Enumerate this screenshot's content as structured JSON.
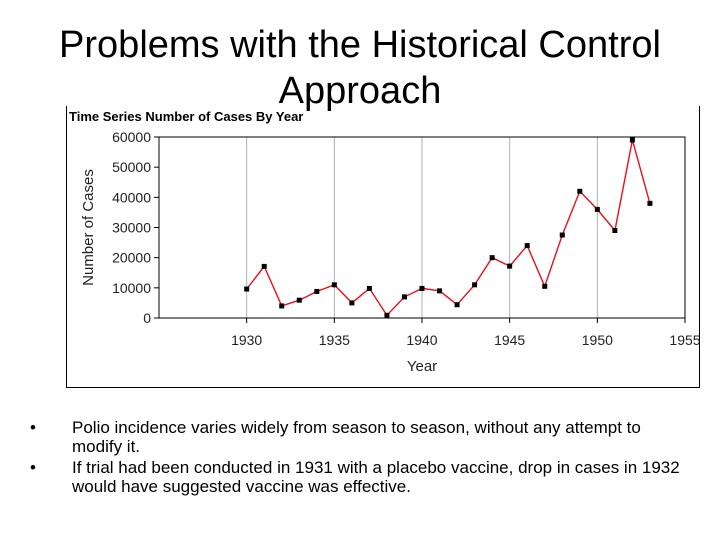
{
  "slide": {
    "title": "Problems with the Historical Control Approach",
    "bullets": [
      "Polio incidence varies widely from season to season, without any attempt to modify it.",
      "If trial had been conducted in 1931 with a placebo vaccine, drop in cases in 1932 would have suggested vaccine was effective."
    ],
    "bullet_glyph": "•"
  },
  "chart_data": {
    "type": "line",
    "title": "Time Series Number of Cases By Year",
    "xlabel": "Year",
    "ylabel": "Number of Cases",
    "xlim": [
      1925,
      1955
    ],
    "ylim": [
      0,
      60000
    ],
    "xticks": [
      1930,
      1935,
      1940,
      1945,
      1950,
      1955
    ],
    "yticks": [
      0,
      10000,
      20000,
      30000,
      40000,
      50000,
      60000
    ],
    "grid": "vertical",
    "colors": {
      "line": "#e8101c",
      "marker": "#000000",
      "grid": "#b0b0b0"
    },
    "series": [
      {
        "name": "Cases",
        "x": [
          1930,
          1931,
          1932,
          1933,
          1934,
          1935,
          1936,
          1937,
          1938,
          1939,
          1940,
          1941,
          1942,
          1943,
          1944,
          1945,
          1946,
          1947,
          1948,
          1949,
          1950,
          1951,
          1952,
          1953
        ],
        "y": [
          9600,
          17100,
          4000,
          5900,
          8800,
          11000,
          5000,
          9800,
          900,
          7000,
          9800,
          9000,
          4400,
          11000,
          20000,
          17200,
          24000,
          10500,
          27500,
          42000,
          36000,
          29000,
          59000,
          38000
        ]
      }
    ]
  }
}
